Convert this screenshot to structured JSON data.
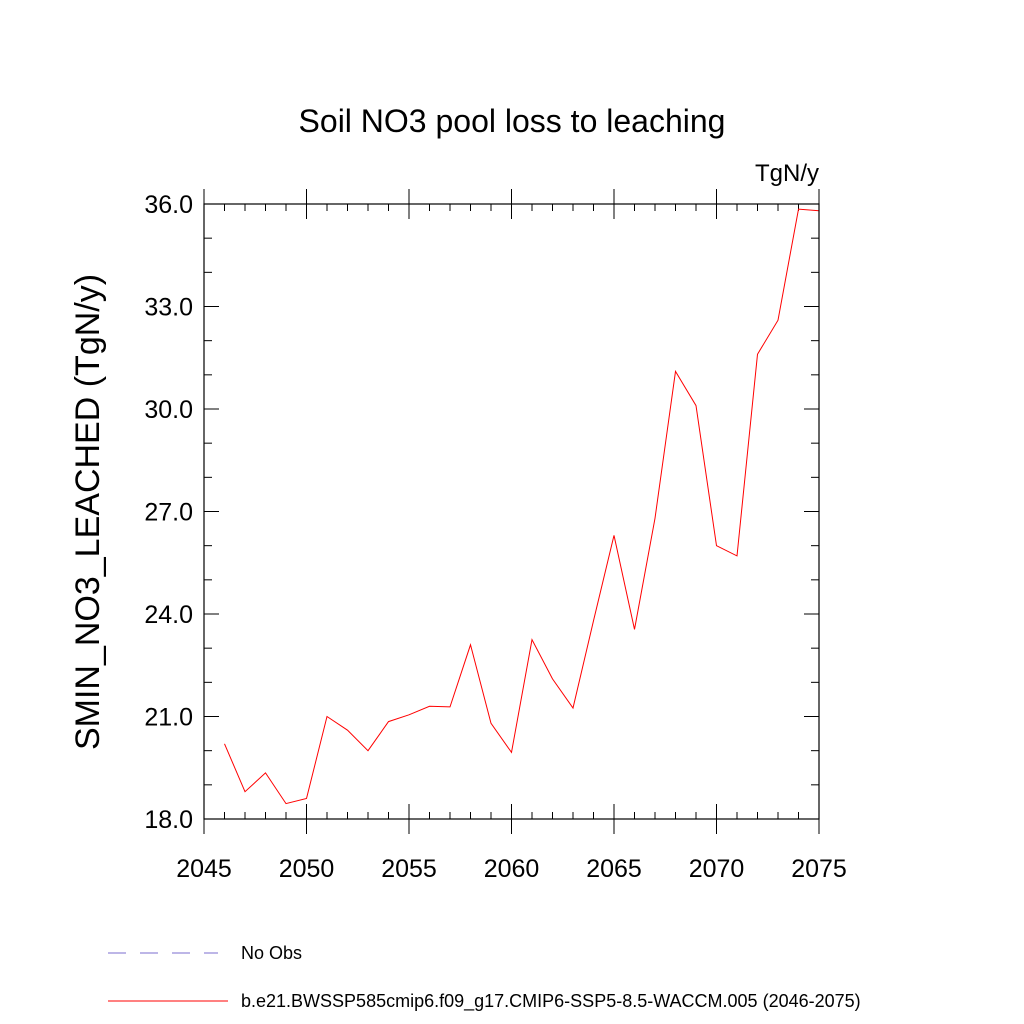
{
  "chart_data": {
    "type": "line",
    "title": "Soil NO3 pool loss to leaching",
    "units_label": "TgN/y",
    "ylabel": "SMIN_NO3_LEACHED  (TgN/y)",
    "xlabel": "",
    "xlim": [
      2045,
      2075
    ],
    "ylim": [
      18.0,
      36.0
    ],
    "x_ticks": [
      2045,
      2050,
      2055,
      2060,
      2065,
      2070,
      2075
    ],
    "x_tick_labels": [
      "2045",
      "2050",
      "2055",
      "2060",
      "2065",
      "2070",
      "2075"
    ],
    "y_ticks": [
      18,
      21,
      24,
      27,
      30,
      33,
      36
    ],
    "y_tick_labels": [
      "18.0",
      "21.0",
      "24.0",
      "27.0",
      "30.0",
      "33.0",
      "36.0"
    ],
    "grid": false,
    "legend_position": "bottom",
    "series": [
      {
        "name": "b.e21.BWSSP585cmip6.f09_g17.CMIP6-SSP5-8.5-WACCM.005 (2046-2075)",
        "color": "#ff0000",
        "line_style": "solid",
        "x": [
          2046,
          2047,
          2048,
          2049,
          2050,
          2051,
          2052,
          2053,
          2054,
          2055,
          2056,
          2057,
          2058,
          2059,
          2060,
          2061,
          2062,
          2063,
          2064,
          2065,
          2066,
          2067,
          2068,
          2069,
          2070,
          2071,
          2072,
          2073,
          2074,
          2075
        ],
        "values": [
          20.2,
          18.8,
          19.35,
          18.45,
          18.6,
          21.0,
          20.6,
          20.0,
          20.85,
          21.05,
          21.3,
          21.28,
          23.1,
          20.8,
          19.95,
          23.25,
          22.1,
          21.25,
          23.8,
          26.3,
          23.55,
          26.8,
          31.1,
          30.1,
          26.0,
          25.7,
          31.6,
          32.6,
          35.85,
          35.8
        ]
      }
    ],
    "legend": [
      {
        "label": "No Obs",
        "color": "#7b6ecf",
        "line_style": "dashed"
      },
      {
        "label": "b.e21.BWSSP585cmip6.f09_g17.CMIP6-SSP5-8.5-WACCM.005 (2046-2075)",
        "color": "#ff0000",
        "line_style": "solid"
      }
    ]
  }
}
